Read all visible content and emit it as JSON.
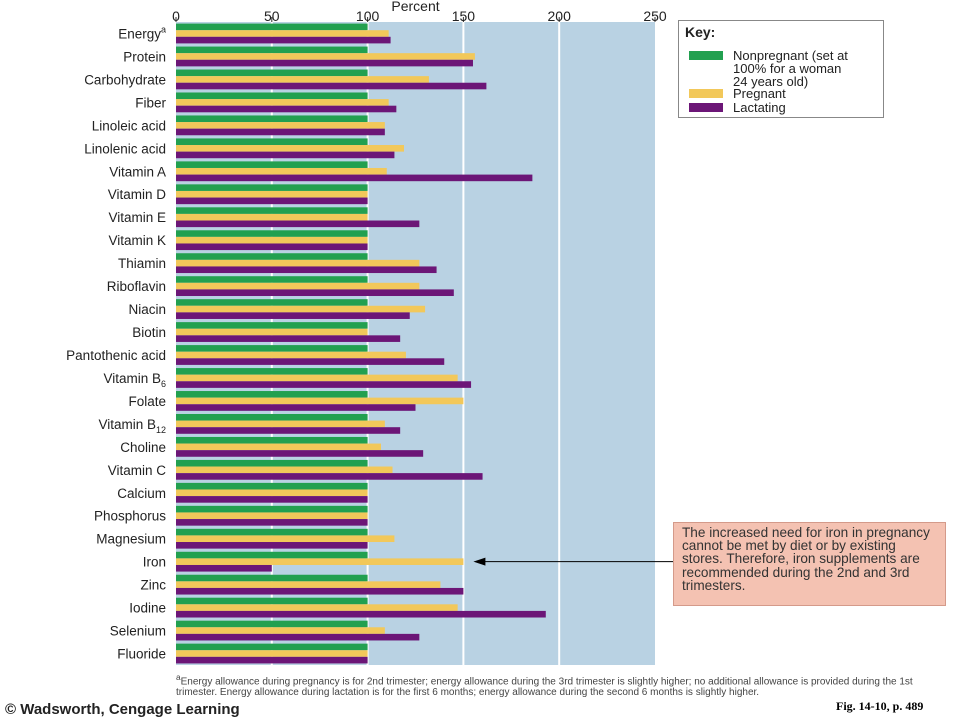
{
  "chart_data": {
    "type": "bar",
    "orientation": "horizontal",
    "title": "",
    "xlabel": "Percent",
    "ylabel": "",
    "xlim": [
      0,
      250
    ],
    "x_ticks": [
      "0",
      "50",
      "100",
      "150",
      "200",
      "250"
    ],
    "categories": [
      "Energy",
      "Protein",
      "Carbohydrate",
      "Fiber",
      "Linoleic acid",
      "Linolenic acid",
      "Vitamin A",
      "Vitamin D",
      "Vitamin E",
      "Vitamin K",
      "Thiamin",
      "Riboflavin",
      "Niacin",
      "Biotin",
      "Pantothenic acid",
      "Vitamin B6",
      "Folate",
      "Vitamin B12",
      "Choline",
      "Vitamin C",
      "Calcium",
      "Phosphorus",
      "Magnesium",
      "Iron",
      "Zinc",
      "Iodine",
      "Selenium",
      "Fluoride"
    ],
    "category_labels": [
      {
        "base": "Energy",
        "sup": "a",
        "sub": ""
      },
      {
        "base": "Protein",
        "sup": "",
        "sub": ""
      },
      {
        "base": "Carbohydrate",
        "sup": "",
        "sub": ""
      },
      {
        "base": "Fiber",
        "sup": "",
        "sub": ""
      },
      {
        "base": "Linoleic acid",
        "sup": "",
        "sub": ""
      },
      {
        "base": "Linolenic acid",
        "sup": "",
        "sub": ""
      },
      {
        "base": "Vitamin A",
        "sup": "",
        "sub": ""
      },
      {
        "base": "Vitamin D",
        "sup": "",
        "sub": ""
      },
      {
        "base": "Vitamin E",
        "sup": "",
        "sub": ""
      },
      {
        "base": "Vitamin K",
        "sup": "",
        "sub": ""
      },
      {
        "base": "Thiamin",
        "sup": "",
        "sub": ""
      },
      {
        "base": "Riboflavin",
        "sup": "",
        "sub": ""
      },
      {
        "base": "Niacin",
        "sup": "",
        "sub": ""
      },
      {
        "base": "Biotin",
        "sup": "",
        "sub": ""
      },
      {
        "base": "Pantothenic acid",
        "sup": "",
        "sub": ""
      },
      {
        "base": "Vitamin B",
        "sup": "",
        "sub": "6"
      },
      {
        "base": "Folate",
        "sup": "",
        "sub": ""
      },
      {
        "base": "Vitamin B",
        "sup": "",
        "sub": "12"
      },
      {
        "base": "Choline",
        "sup": "",
        "sub": ""
      },
      {
        "base": "Vitamin C",
        "sup": "",
        "sub": ""
      },
      {
        "base": "Calcium",
        "sup": "",
        "sub": ""
      },
      {
        "base": "Phosphorus",
        "sup": "",
        "sub": ""
      },
      {
        "base": "Magnesium",
        "sup": "",
        "sub": ""
      },
      {
        "base": "Iron",
        "sup": "",
        "sub": ""
      },
      {
        "base": "Zinc",
        "sup": "",
        "sub": ""
      },
      {
        "base": "Iodine",
        "sup": "",
        "sub": ""
      },
      {
        "base": "Selenium",
        "sup": "",
        "sub": ""
      },
      {
        "base": "Fluoride",
        "sup": "",
        "sub": ""
      }
    ],
    "series": [
      {
        "name": "Nonpregnant (set at 100% for a woman 24 years old)",
        "color": "#22a050",
        "values": [
          100,
          100,
          100,
          100,
          100,
          100,
          100,
          100,
          100,
          100,
          100,
          100,
          100,
          100,
          100,
          100,
          100,
          100,
          100,
          100,
          100,
          100,
          100,
          100,
          100,
          100,
          100,
          100
        ]
      },
      {
        "name": "Pregnant",
        "color": "#f2c85a",
        "values": [
          111,
          156,
          132,
          111,
          109,
          119,
          110,
          100,
          100,
          100,
          127,
          127,
          130,
          100,
          120,
          147,
          150,
          109,
          107,
          113,
          100,
          100,
          114,
          150,
          138,
          147,
          109,
          100
        ]
      },
      {
        "name": "Lactating",
        "color": "#6c1677",
        "values": [
          112,
          155,
          162,
          115,
          109,
          114,
          186,
          100,
          127,
          100,
          136,
          145,
          122,
          117,
          140,
          154,
          125,
          117,
          129,
          160,
          100,
          100,
          100,
          50,
          150,
          193,
          127,
          100
        ]
      }
    ],
    "grid": true,
    "legend_position": "top-right",
    "colors": {
      "plot_background": "#b9d2e3",
      "grid": "#ffffff"
    }
  },
  "key": {
    "title": "Key:",
    "labels": [
      "Nonpregnant (set at\n100% for a woman\n24 years old)",
      "Pregnant",
      "Lactating"
    ]
  },
  "annotation": {
    "text": "The increased need for iron in pregnancy cannot be met by diet or by existing stores. Therefore, iron supplements are recommended during the 2nd and 3rd trimesters.",
    "target_category": "Iron"
  },
  "footnote": {
    "marker": "a",
    "text": "Energy allowance during pregnancy is for 2nd trimester; energy allowance during the 3rd trimester is slightly higher; no additional allowance is provided during the 1st trimester. Energy allowance during lactation is for the first 6 months; energy allowance during the second 6 months is slightly higher."
  },
  "credit": "© Wadsworth, Cengage Learning",
  "figure_ref": "Fig. 14-10, p. 489"
}
